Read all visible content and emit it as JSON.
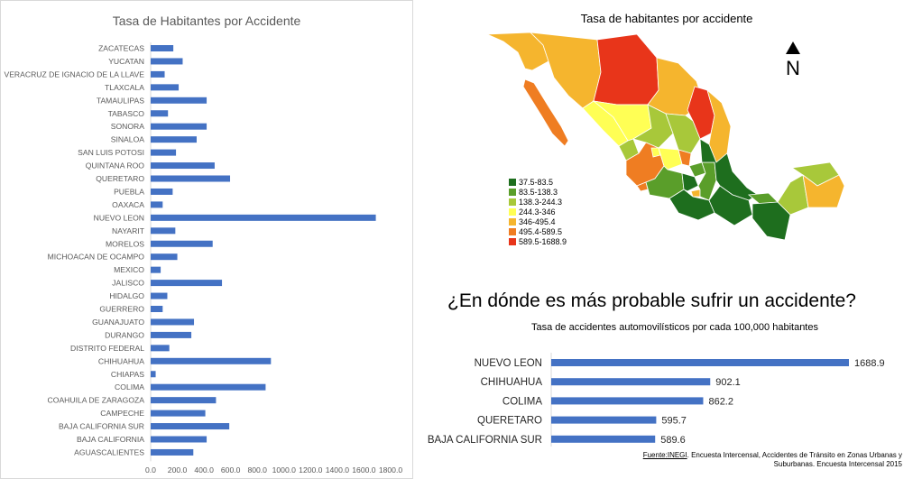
{
  "left_chart": {
    "title": "Tasa de Habitantes por Accidente",
    "tick_labels": [
      "0.0",
      "200.0",
      "400.0",
      "600.0",
      "800.0",
      "1000.0",
      "1200.0",
      "1400.0",
      "1600.0",
      "1800.0"
    ]
  },
  "map": {
    "title": "Tasa de habitantes por accidente",
    "north_label": "N",
    "legend": [
      {
        "label": "37.5-83.5",
        "color": "#1e6e1e"
      },
      {
        "label": "83.5-138.3",
        "color": "#5a9e2a"
      },
      {
        "label": "138.3-244.3",
        "color": "#a8c83a"
      },
      {
        "label": "244.3-346",
        "color": "#ffff55"
      },
      {
        "label": "346-495.4",
        "color": "#f5b52e"
      },
      {
        "label": "495.4-589.5",
        "color": "#ef7d22"
      },
      {
        "label": "589.5-1688.9",
        "color": "#e8351a"
      }
    ]
  },
  "headline": "¿En dónde es más probable sufrir un accidente?",
  "right_chart": {
    "subtitle": "Tasa de accidentes automovilísticos por cada 100,000 habitantes"
  },
  "source": {
    "label": "Fuente:INEGI",
    "text1": ". Encuesta Intercensal, Accidentes de Tránsito en Zonas Urbanas y",
    "text2": "Suburbanas. Encuesta Intercensal 2015"
  },
  "chart_data": [
    {
      "type": "bar",
      "orientation": "horizontal",
      "title": "Tasa de Habitantes por Accidente",
      "categories": [
        "ZACATECAS",
        "YUCATAN",
        "VERACRUZ DE IGNACIO DE LA LLAVE",
        "TLAXCALA",
        "TAMAULIPAS",
        "TABASCO",
        "SONORA",
        "SINALOA",
        "SAN LUIS POTOSI",
        "QUINTANA ROO",
        "QUERETARO",
        "PUEBLA",
        "OAXACA",
        "NUEVO LEON",
        "NAYARIT",
        "MORELOS",
        "MICHOACAN DE OCAMPO",
        "MEXICO",
        "JALISCO",
        "HIDALGO",
        "GUERRERO",
        "GUANAJUATO",
        "DURANGO",
        "DISTRITO FEDERAL",
        "CHIHUAHUA",
        "CHIAPAS",
        "COLIMA",
        "COAHUILA DE ZARAGOZA",
        "CAMPECHE",
        "BAJA CALIFORNIA SUR",
        "BAJA CALIFORNIA",
        "AGUASCALIENTES"
      ],
      "values": [
        170,
        240,
        105,
        210,
        420,
        130,
        420,
        345,
        190,
        480,
        595.7,
        165,
        90,
        1688.9,
        185,
        465,
        200,
        75,
        535,
        125,
        90,
        325,
        305,
        140,
        902.1,
        37.5,
        862.2,
        490,
        410,
        589.6,
        420,
        320
      ],
      "xlim": [
        0,
        1800
      ],
      "color": "#4472c4"
    },
    {
      "type": "bar",
      "orientation": "horizontal",
      "title": "Tasa de accidentes automovilísticos por cada 100,000 habitantes",
      "categories": [
        "NUEVO LEON",
        "CHIHUAHUA",
        "COLIMA",
        "QUERETARO",
        "BAJA CALIFORNIA SUR"
      ],
      "values": [
        1688.9,
        902.1,
        862.2,
        595.7,
        589.6
      ],
      "value_labels": [
        "1688.9",
        "902.1",
        "862.2",
        "595.7",
        "589.6"
      ],
      "color": "#4472c4"
    }
  ]
}
